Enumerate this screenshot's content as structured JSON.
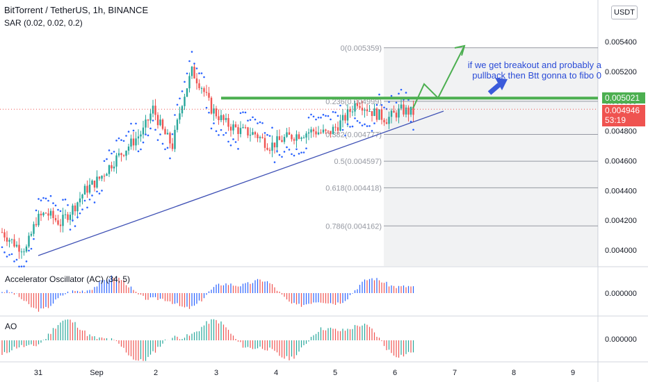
{
  "header": {
    "title": "BitTorrent / TetherUS, 1h, BINANCE",
    "indicator_sar": "SAR (0.02, 0.02, 0.2)",
    "indicator_ac": "Accelerator Oscillator (AC) (34, 5)",
    "indicator_ao": "AO",
    "currency_button": "USDT"
  },
  "annotation": {
    "text": "if we get breakout and probably a pullback then Btt gonna to fibo 0"
  },
  "price_badges": {
    "resistance": "0.005021",
    "last_price": "0.004946",
    "countdown": "53:19"
  },
  "colors": {
    "up": "#26a69a",
    "down": "#ef5350",
    "sar": "#2962ff",
    "trendline": "#3f51b5",
    "resistance": "#4caf50",
    "annotation": "#2a4bd7",
    "osc_up": "#2962ff",
    "osc_down": "#ef5350",
    "ao_up": "#26a69a",
    "ao_down": "#ef5350"
  },
  "chart_data": [
    {
      "type": "candlestick",
      "pair": "BitTorrent / TetherUS",
      "timeframe": "1h",
      "exchange": "BINANCE",
      "y_axis": {
        "ticks": [
          "0.004000",
          "0.004200",
          "0.004400",
          "0.004600",
          "0.004800",
          "0.005000",
          "0.005200",
          "0.005400"
        ],
        "range": [
          0.0039,
          0.0056
        ]
      },
      "x_axis": {
        "ticks": [
          "31",
          "Sep",
          "2",
          "3",
          "4",
          "5",
          "6",
          "7",
          "8",
          "9"
        ]
      },
      "fibonacci": [
        {
          "level": "0",
          "price": 0.005359,
          "label": "0(0.005359)"
        },
        {
          "level": "0.236",
          "price": 0.004999,
          "label": "0.236(0.004999)"
        },
        {
          "level": "0.382",
          "price": 0.004777,
          "label": "0.382(0.004777)"
        },
        {
          "level": "0.5",
          "price": 0.004597,
          "label": "0.5(0.004597)"
        },
        {
          "level": "0.618",
          "price": 0.004418,
          "label": "0.618(0.004418)"
        },
        {
          "level": "0.786",
          "price": 0.004162,
          "label": "0.786(0.004162)"
        }
      ],
      "resistance_line": 0.005021,
      "last_price": 0.004946,
      "candles_approx": [
        [
          0.00413,
          0.00415,
          0.00405,
          0.00408
        ],
        [
          0.00408,
          0.0041,
          0.00398,
          0.00401
        ],
        [
          0.00401,
          0.00412,
          0.00399,
          0.0041
        ],
        [
          0.0041,
          0.00416,
          0.00407,
          0.00414
        ],
        [
          0.00414,
          0.00415,
          0.00402,
          0.00404
        ],
        [
          0.00404,
          0.00406,
          0.00396,
          0.00399
        ],
        [
          0.00399,
          0.00404,
          0.00395,
          0.00402
        ],
        [
          0.00402,
          0.00418,
          0.00401,
          0.00416
        ],
        [
          0.00416,
          0.00424,
          0.00412,
          0.00421
        ],
        [
          0.00421,
          0.00428,
          0.00414,
          0.00417
        ],
        [
          0.00417,
          0.0043,
          0.00415,
          0.00428
        ],
        [
          0.00428,
          0.00433,
          0.0042,
          0.00423
        ],
        [
          0.00423,
          0.00426,
          0.00416,
          0.00419
        ],
        [
          0.00419,
          0.00424,
          0.00415,
          0.00422
        ],
        [
          0.00422,
          0.00432,
          0.0042,
          0.0043
        ],
        [
          0.0043,
          0.00438,
          0.00427,
          0.00435
        ],
        [
          0.00435,
          0.00444,
          0.00432,
          0.00441
        ],
        [
          0.00441,
          0.00446,
          0.00433,
          0.00437
        ],
        [
          0.00437,
          0.00449,
          0.00435,
          0.00446
        ],
        [
          0.00446,
          0.00455,
          0.00442,
          0.00452
        ],
        [
          0.00452,
          0.00458,
          0.00444,
          0.00447
        ],
        [
          0.00447,
          0.00462,
          0.00446,
          0.00459
        ],
        [
          0.00459,
          0.00475,
          0.00456,
          0.00472
        ],
        [
          0.00472,
          0.00482,
          0.00466,
          0.00479
        ],
        [
          0.00479,
          0.00483,
          0.00468,
          0.0047
        ],
        [
          0.0047,
          0.00508,
          0.00469,
          0.00505
        ],
        [
          0.00505,
          0.00532,
          0.005,
          0.00525
        ],
        [
          0.00525,
          0.0053,
          0.00505,
          0.00508
        ],
        [
          0.00508,
          0.00512,
          0.0049,
          0.00494
        ],
        [
          0.00494,
          0.00498,
          0.00484,
          0.00488
        ],
        [
          0.00488,
          0.00496,
          0.00482,
          0.00491
        ],
        [
          0.00491,
          0.00494,
          0.00475,
          0.00478
        ],
        [
          0.00478,
          0.00488,
          0.00474,
          0.00484
        ],
        [
          0.00484,
          0.0049,
          0.00476,
          0.0048
        ],
        [
          0.0048,
          0.00483,
          0.0047,
          0.00473
        ],
        [
          0.00473,
          0.00478,
          0.00466,
          0.0047
        ],
        [
          0.0047,
          0.00476,
          0.00465,
          0.00473
        ],
        [
          0.00473,
          0.0048,
          0.00468,
          0.00477
        ],
        [
          0.00477,
          0.00481,
          0.0047,
          0.00474
        ],
        [
          0.00474,
          0.00476,
          0.00468,
          0.00471
        ],
        [
          0.00471,
          0.00483,
          0.0047,
          0.0048
        ],
        [
          0.0048,
          0.00499,
          0.00478,
          0.00496
        ],
        [
          0.00496,
          0.005,
          0.00486,
          0.0049
        ],
        [
          0.0049,
          0.00498,
          0.00485,
          0.00494
        ]
      ]
    },
    {
      "type": "bar",
      "name": "Accelerator Oscillator (AC) (34, 5)",
      "y_axis": {
        "ticks": [
          "0.000000"
        ]
      }
    },
    {
      "type": "bar",
      "name": "AO",
      "y_axis": {
        "ticks": [
          "0.000000"
        ]
      }
    }
  ]
}
